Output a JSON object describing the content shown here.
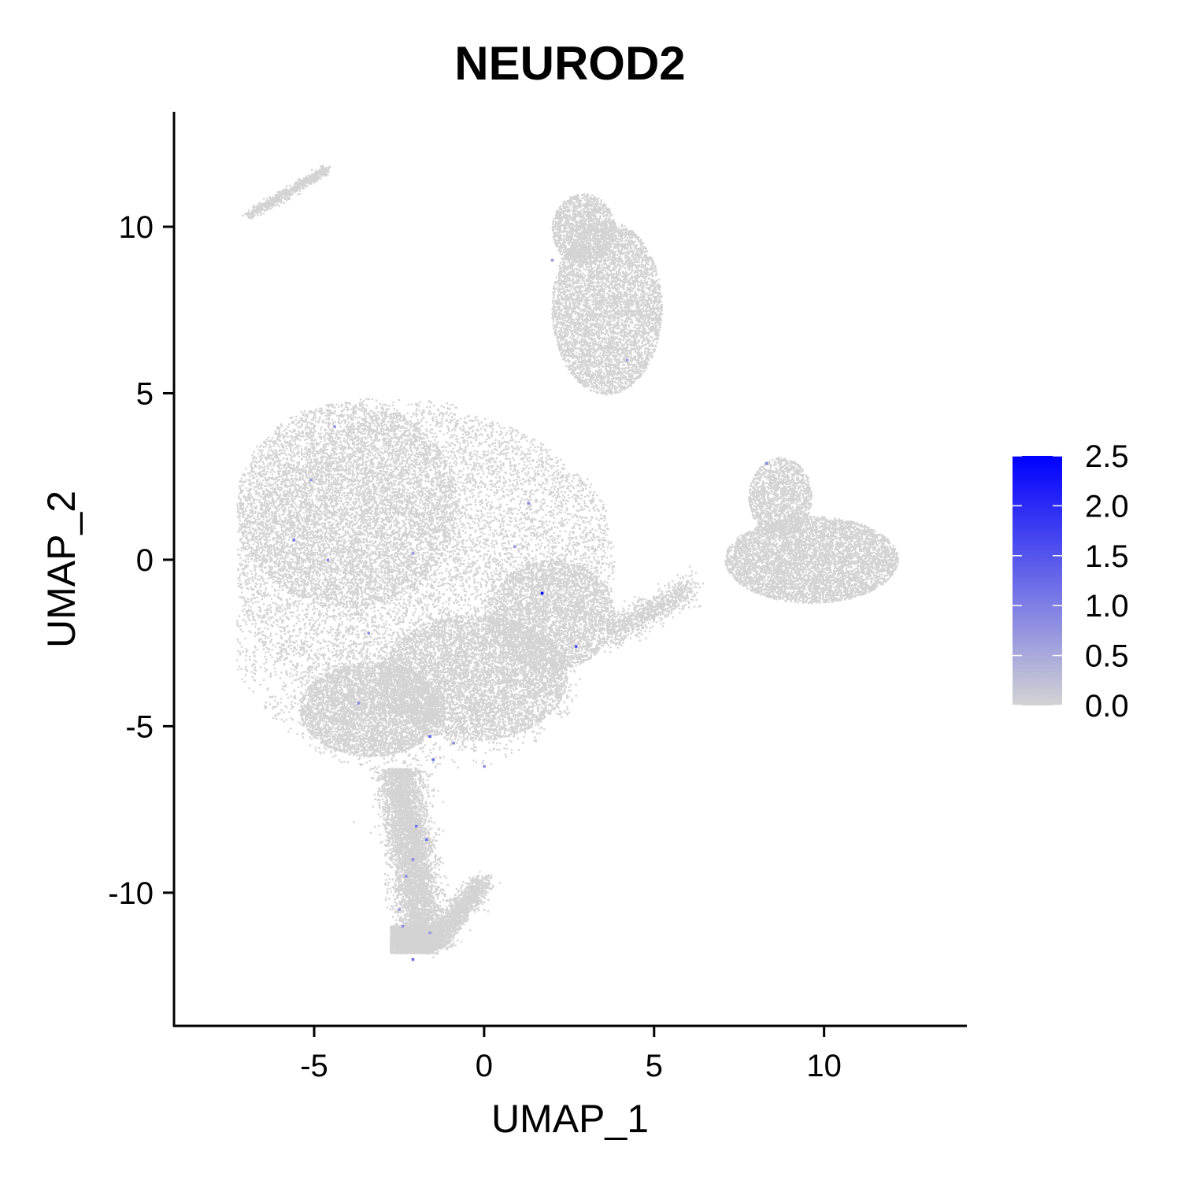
{
  "chart_data": {
    "type": "scatter",
    "title": "NEUROD2",
    "xlabel": "UMAP_1",
    "ylabel": "UMAP_2",
    "xlim": [
      -9.1,
      14.2
    ],
    "ylim": [
      -14,
      13.5
    ],
    "x_ticks": [
      -5,
      0,
      5,
      10
    ],
    "x_tick_labels": [
      "-5",
      "0",
      "5",
      "10"
    ],
    "y_ticks": [
      -10,
      -5,
      0,
      5,
      10
    ],
    "y_tick_labels": [
      "-10",
      "-5",
      "0",
      "5",
      "10"
    ],
    "grid": false,
    "legend_position": "right",
    "color_scale": {
      "low_color": "#d3d3d3",
      "high_color": "#0000ff",
      "min": 0,
      "max": 2.5,
      "breaks": [
        0.0,
        0.5,
        1.0,
        1.5,
        2.0,
        2.5
      ],
      "break_labels": [
        "0.0",
        "0.5",
        "1.0",
        "1.5",
        "2.0",
        "2.5"
      ]
    },
    "background_cells_expression": 0,
    "expressing_cells": [
      {
        "x": -5.6,
        "y": 0.6,
        "value": 1.2
      },
      {
        "x": -4.6,
        "y": 0.0,
        "value": 0.9
      },
      {
        "x": -4.4,
        "y": 4.0,
        "value": 0.8
      },
      {
        "x": -5.1,
        "y": 2.4,
        "value": 0.7
      },
      {
        "x": -3.7,
        "y": -4.3,
        "value": 0.8
      },
      {
        "x": -2.1,
        "y": 0.2,
        "value": 0.7
      },
      {
        "x": 1.7,
        "y": -1.0,
        "value": 2.5
      },
      {
        "x": 2.7,
        "y": -2.6,
        "value": 1.6
      },
      {
        "x": 1.3,
        "y": 1.7,
        "value": 0.8
      },
      {
        "x": 2.0,
        "y": 9.0,
        "value": 0.7
      },
      {
        "x": 4.2,
        "y": 6.0,
        "value": 0.6
      },
      {
        "x": 8.3,
        "y": 2.9,
        "value": 0.9
      },
      {
        "x": -1.6,
        "y": -5.3,
        "value": 1.4
      },
      {
        "x": -1.5,
        "y": -6.0,
        "value": 1.2
      },
      {
        "x": -0.9,
        "y": -5.5,
        "value": 0.8
      },
      {
        "x": 0.0,
        "y": -6.2,
        "value": 0.8
      },
      {
        "x": -2.0,
        "y": -8.0,
        "value": 1.1
      },
      {
        "x": -1.7,
        "y": -8.4,
        "value": 1.2
      },
      {
        "x": -2.1,
        "y": -9.0,
        "value": 0.9
      },
      {
        "x": -2.3,
        "y": -9.5,
        "value": 0.8
      },
      {
        "x": -2.5,
        "y": -10.5,
        "value": 0.7
      },
      {
        "x": -2.4,
        "y": -11.0,
        "value": 0.8
      },
      {
        "x": -2.1,
        "y": -12.0,
        "value": 1.3
      },
      {
        "x": -1.6,
        "y": -11.2,
        "value": 0.7
      },
      {
        "x": -3.4,
        "y": -2.2,
        "value": 0.8
      },
      {
        "x": 0.9,
        "y": 0.4,
        "value": 0.7
      }
    ]
  }
}
